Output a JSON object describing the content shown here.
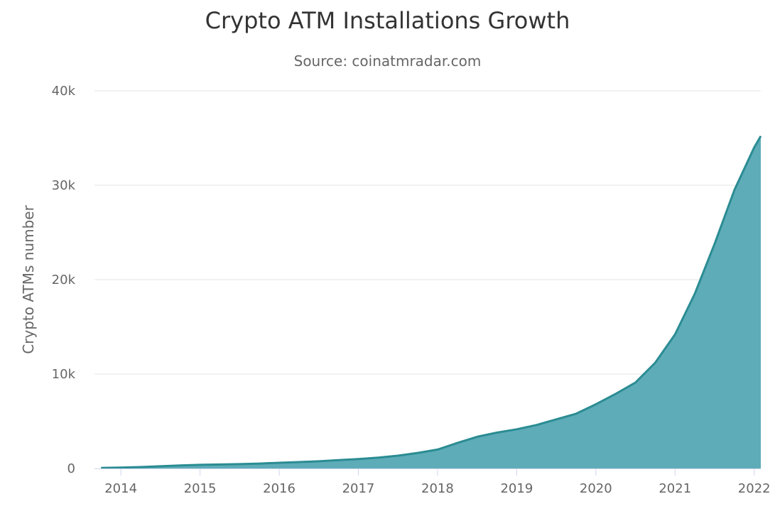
{
  "chart_data": {
    "type": "area",
    "title": "Crypto ATM Installations Growth",
    "subtitle": "Source: coinatmradar.com",
    "ylabel": "Crypto ATMs number",
    "xlabel": "",
    "x_ticks": [
      "2014",
      "2015",
      "2016",
      "2017",
      "2018",
      "2019",
      "2020",
      "2021",
      "2022"
    ],
    "y_ticks": [
      "0",
      "10k",
      "20k",
      "30k",
      "40k"
    ],
    "ylim": [
      0,
      40000
    ],
    "xlim": [
      "2013-09",
      "2022-02"
    ],
    "grid": true,
    "colors": {
      "fill": "#5eacb8",
      "line": "#2b8c93",
      "grid": "#e6e6e6",
      "axis": "#ccd6eb"
    },
    "series": [
      {
        "x": [
          "2013-10",
          "2014-01",
          "2014-04",
          "2014-07",
          "2014-10",
          "2015-01",
          "2015-04",
          "2015-07",
          "2015-10",
          "2016-01",
          "2016-04",
          "2016-07",
          "2016-10",
          "2017-01",
          "2017-04",
          "2017-07",
          "2017-10",
          "2018-01",
          "2018-04",
          "2018-07",
          "2018-10",
          "2019-01",
          "2019-04",
          "2019-07",
          "2019-10",
          "2020-01",
          "2020-04",
          "2020-07",
          "2020-10",
          "2021-01",
          "2021-04",
          "2021-07",
          "2021-10",
          "2022-01",
          "2022-02"
        ],
        "values": [
          50,
          90,
          150,
          230,
          320,
          380,
          420,
          460,
          520,
          600,
          680,
          760,
          880,
          1000,
          1150,
          1350,
          1650,
          2000,
          2700,
          3350,
          3800,
          4150,
          4600,
          5200,
          5800,
          6800,
          7900,
          9100,
          11200,
          14200,
          18500,
          23800,
          29500,
          34000,
          35200
        ]
      }
    ]
  }
}
